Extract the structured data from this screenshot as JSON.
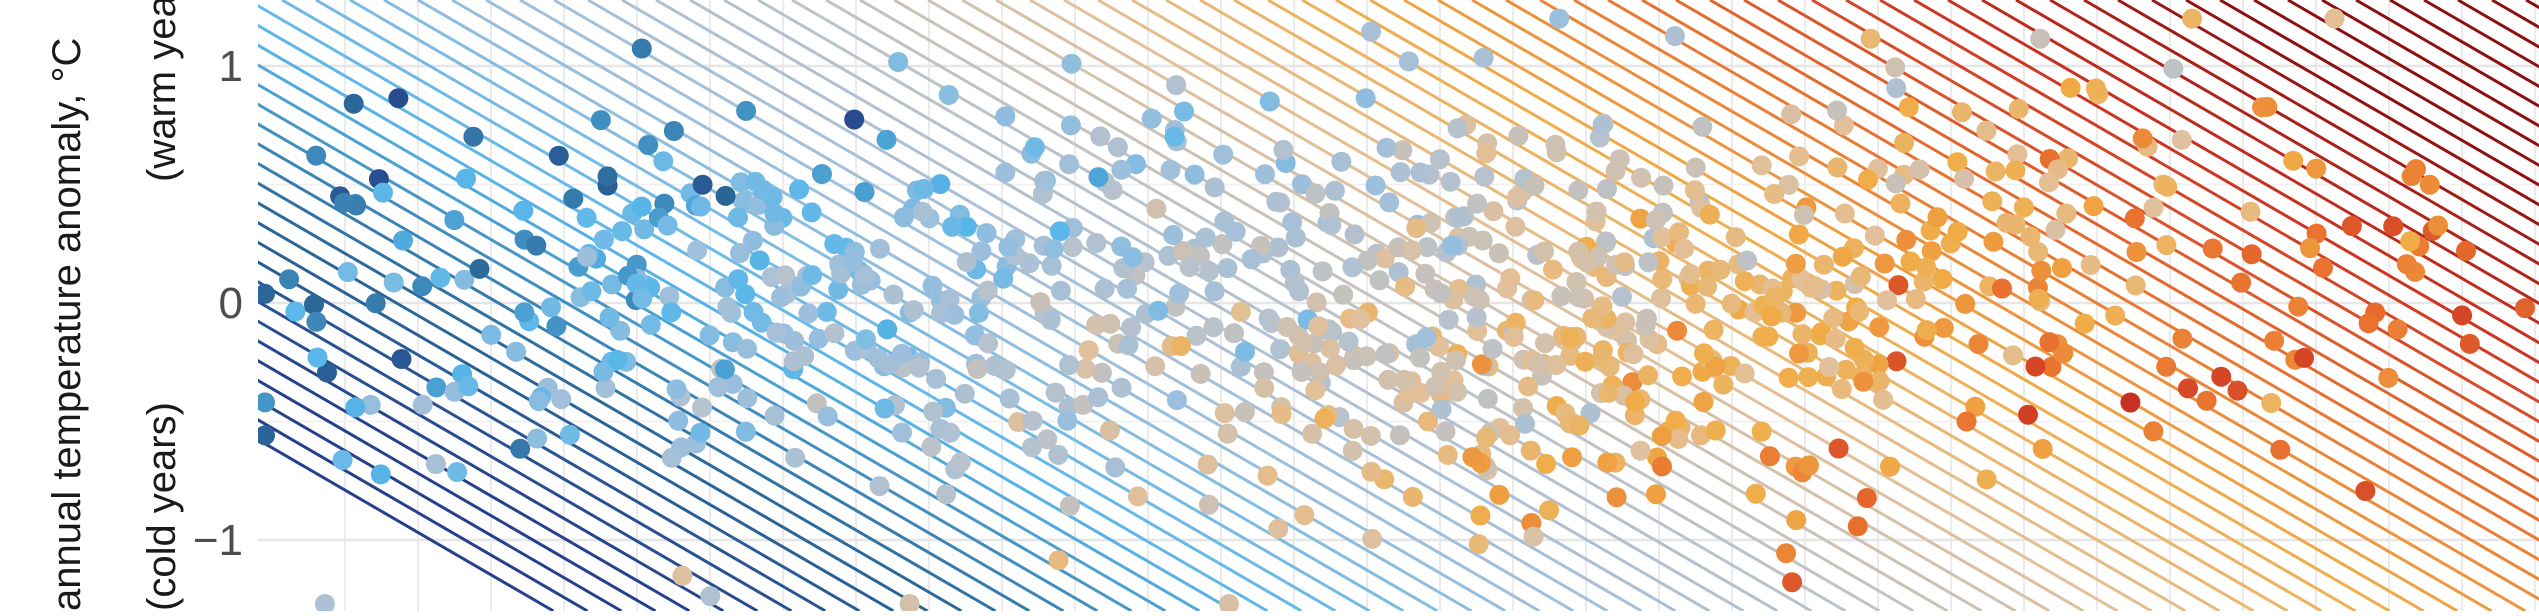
{
  "chart_data": {
    "type": "scatter",
    "title": "",
    "xlabel": "",
    "ylabel": "annual temperature anomaly, °C",
    "y_annotation_high": "(warm years)",
    "y_annotation_low": "(cold years)",
    "ylim": [
      -1.3,
      1.22
    ],
    "yticks": [
      {
        "value": 1,
        "label": "1"
      },
      {
        "value": 0,
        "label": "0"
      },
      {
        "value": -1,
        "label": "−1"
      }
    ],
    "grid": true,
    "background_diagonal_stripes": true,
    "point_count": 900,
    "color_scale": [
      "#26408b",
      "#2b6a9a",
      "#59b7ea",
      "#9dbfdc",
      "#b8c2cc",
      "#e2c09a",
      "#f0ad47",
      "#e9722f",
      "#cc3322",
      "#8c1010"
    ]
  }
}
